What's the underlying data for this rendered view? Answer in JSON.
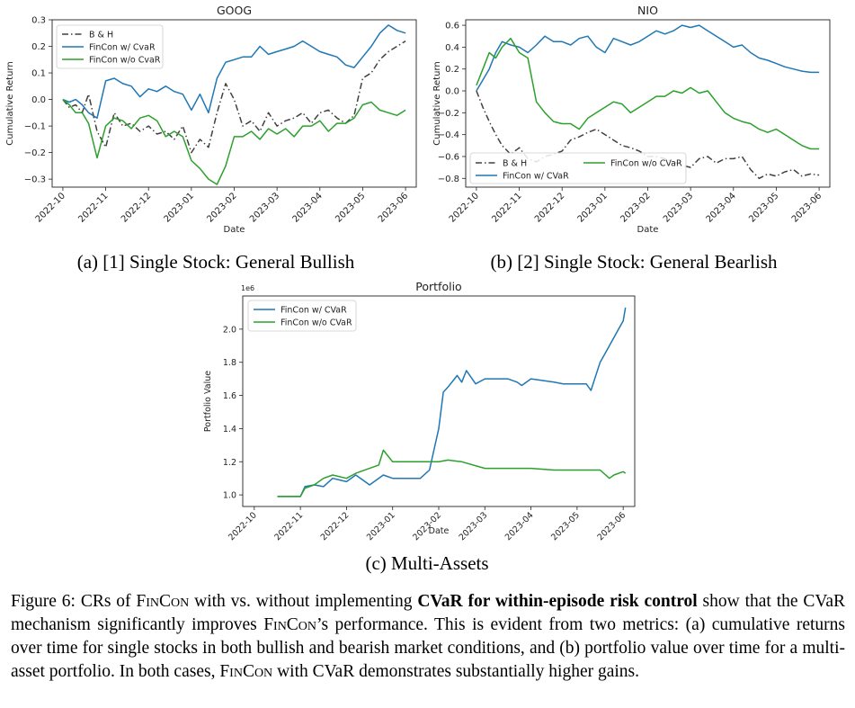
{
  "colors": {
    "bh": "#404040",
    "with_cvar": "#1f77b4",
    "without_cvar": "#2ca02c",
    "axis": "#222222"
  },
  "chart_data": [
    {
      "id": "goog",
      "type": "line",
      "title": "GOOG",
      "xlabel": "Date",
      "ylabel": "Cumulative Return",
      "x_ticks": [
        "2022-10",
        "2022-11",
        "2022-12",
        "2023-01",
        "2023-02",
        "2023-03",
        "2023-04",
        "2023-05",
        "2023-06"
      ],
      "ylim": [
        -0.33,
        0.3
      ],
      "y_ticks": [
        -0.3,
        -0.2,
        -0.1,
        0.0,
        0.1,
        0.2,
        0.3
      ],
      "y_tick_labels": [
        "−0.3",
        "−0.2",
        "−0.1",
        "0.0",
        "0.1",
        "0.2",
        "0.3"
      ],
      "legend_position": "top-left",
      "series": [
        {
          "name": "B & H",
          "style": "dashdot",
          "color_key": "bh",
          "x": [
            0,
            0.15,
            0.3,
            0.45,
            0.6,
            0.8,
            1,
            1.2,
            1.4,
            1.6,
            1.8,
            2,
            2.2,
            2.4,
            2.6,
            2.8,
            3,
            3.2,
            3.4,
            3.6,
            3.8,
            4,
            4.2,
            4.4,
            4.6,
            4.8,
            5,
            5.2,
            5.4,
            5.6,
            5.8,
            6,
            6.2,
            6.4,
            6.6,
            6.8,
            7,
            7.2,
            7.4,
            7.6,
            7.8,
            8
          ],
          "values": [
            0,
            -0.03,
            -0.02,
            -0.05,
            0.02,
            -0.12,
            -0.18,
            -0.05,
            -0.1,
            -0.09,
            -0.12,
            -0.1,
            -0.13,
            -0.12,
            -0.15,
            -0.1,
            -0.2,
            -0.15,
            -0.18,
            -0.05,
            0.06,
            0,
            -0.1,
            -0.08,
            -0.12,
            -0.05,
            -0.1,
            -0.08,
            -0.07,
            -0.05,
            -0.09,
            -0.05,
            -0.04,
            -0.07,
            -0.09,
            -0.06,
            0.08,
            0.1,
            0.15,
            0.18,
            0.2,
            0.22
          ]
        },
        {
          "name": "FinCon w/ CvaR",
          "style": "solid",
          "color_key": "with_cvar",
          "x": [
            0,
            0.15,
            0.3,
            0.45,
            0.6,
            0.8,
            1,
            1.2,
            1.4,
            1.6,
            1.8,
            2,
            2.2,
            2.4,
            2.6,
            2.8,
            3,
            3.2,
            3.4,
            3.6,
            3.8,
            4,
            4.2,
            4.4,
            4.6,
            4.8,
            5,
            5.2,
            5.4,
            5.6,
            5.8,
            6,
            6.2,
            6.4,
            6.6,
            6.8,
            7,
            7.2,
            7.4,
            7.6,
            7.8,
            8
          ],
          "values": [
            0,
            -0.01,
            0,
            -0.02,
            -0.05,
            -0.07,
            0.07,
            0.08,
            0.06,
            0.05,
            0.01,
            0.04,
            0.03,
            0.05,
            0.03,
            0.02,
            -0.04,
            0.02,
            -0.05,
            0.08,
            0.14,
            0.15,
            0.16,
            0.16,
            0.2,
            0.17,
            0.18,
            0.19,
            0.2,
            0.22,
            0.2,
            0.18,
            0.17,
            0.16,
            0.13,
            0.12,
            0.16,
            0.2,
            0.25,
            0.28,
            0.26,
            0.25
          ]
        },
        {
          "name": "FinCon w/o CvaR",
          "style": "solid",
          "color_key": "without_cvar",
          "x": [
            0,
            0.15,
            0.3,
            0.45,
            0.6,
            0.8,
            1,
            1.2,
            1.4,
            1.6,
            1.8,
            2,
            2.2,
            2.4,
            2.6,
            2.8,
            3,
            3.2,
            3.4,
            3.6,
            3.8,
            4,
            4.2,
            4.4,
            4.6,
            4.8,
            5,
            5.2,
            5.4,
            5.6,
            5.8,
            6,
            6.2,
            6.4,
            6.6,
            6.8,
            7,
            7.2,
            7.4,
            7.6,
            7.8,
            8
          ],
          "values": [
            0,
            -0.02,
            -0.05,
            -0.05,
            -0.09,
            -0.22,
            -0.1,
            -0.07,
            -0.08,
            -0.11,
            -0.07,
            -0.06,
            -0.08,
            -0.14,
            -0.12,
            -0.14,
            -0.23,
            -0.26,
            -0.3,
            -0.32,
            -0.25,
            -0.14,
            -0.14,
            -0.12,
            -0.15,
            -0.11,
            -0.13,
            -0.11,
            -0.14,
            -0.1,
            -0.1,
            -0.08,
            -0.12,
            -0.09,
            -0.09,
            -0.07,
            -0.02,
            -0.01,
            -0.04,
            -0.05,
            -0.06,
            -0.04
          ]
        }
      ]
    },
    {
      "id": "nio",
      "type": "line",
      "title": "NIO",
      "xlabel": "Date",
      "ylabel": "Cumulative Return",
      "x_ticks": [
        "2022-10",
        "2022-11",
        "2022-12",
        "2023-01",
        "2023-02",
        "2023-03",
        "2023-04",
        "2023-05",
        "2023-06"
      ],
      "ylim": [
        -0.88,
        0.65
      ],
      "y_ticks": [
        -0.8,
        -0.6,
        -0.4,
        -0.2,
        0.0,
        0.2,
        0.4,
        0.6
      ],
      "y_tick_labels": [
        "−0.8",
        "−0.6",
        "−0.4",
        "−0.2",
        "0.0",
        "0.2",
        "0.4",
        "0.6"
      ],
      "legend_position": "bottom-left",
      "series": [
        {
          "name": "B & H",
          "style": "dashdot",
          "color_key": "bh",
          "x": [
            0,
            0.15,
            0.3,
            0.45,
            0.6,
            0.8,
            1,
            1.2,
            1.4,
            1.6,
            1.8,
            2,
            2.2,
            2.4,
            2.6,
            2.8,
            3,
            3.2,
            3.4,
            3.6,
            3.8,
            4,
            4.2,
            4.4,
            4.6,
            4.8,
            5,
            5.2,
            5.4,
            5.6,
            5.8,
            6,
            6.2,
            6.4,
            6.6,
            6.8,
            7,
            7.2,
            7.4,
            7.6,
            7.8,
            8
          ],
          "values": [
            0,
            -0.15,
            -0.28,
            -0.4,
            -0.5,
            -0.58,
            -0.52,
            -0.62,
            -0.65,
            -0.6,
            -0.58,
            -0.55,
            -0.45,
            -0.42,
            -0.38,
            -0.35,
            -0.4,
            -0.45,
            -0.5,
            -0.52,
            -0.55,
            -0.6,
            -0.6,
            -0.62,
            -0.65,
            -0.68,
            -0.7,
            -0.62,
            -0.6,
            -0.66,
            -0.62,
            -0.62,
            -0.6,
            -0.72,
            -0.8,
            -0.76,
            -0.78,
            -0.74,
            -0.72,
            -0.78,
            -0.76,
            -0.77
          ]
        },
        {
          "name": "FinCon w/ CVaR",
          "style": "solid",
          "color_key": "with_cvar",
          "x": [
            0,
            0.15,
            0.3,
            0.45,
            0.6,
            0.8,
            1,
            1.2,
            1.4,
            1.6,
            1.8,
            2,
            2.2,
            2.4,
            2.6,
            2.8,
            3,
            3.2,
            3.4,
            3.6,
            3.8,
            4,
            4.2,
            4.4,
            4.6,
            4.8,
            5,
            5.2,
            5.4,
            5.6,
            5.8,
            6,
            6.2,
            6.4,
            6.6,
            6.8,
            7,
            7.2,
            7.4,
            7.6,
            7.8,
            8
          ],
          "values": [
            0,
            0.1,
            0.2,
            0.35,
            0.45,
            0.42,
            0.4,
            0.35,
            0.42,
            0.5,
            0.45,
            0.45,
            0.42,
            0.48,
            0.5,
            0.4,
            0.35,
            0.48,
            0.45,
            0.42,
            0.45,
            0.5,
            0.55,
            0.52,
            0.55,
            0.6,
            0.58,
            0.6,
            0.55,
            0.5,
            0.45,
            0.4,
            0.42,
            0.35,
            0.3,
            0.28,
            0.25,
            0.22,
            0.2,
            0.18,
            0.17,
            0.17
          ]
        },
        {
          "name": "FinCon w/o CVaR",
          "style": "solid",
          "color_key": "without_cvar",
          "x": [
            0,
            0.15,
            0.3,
            0.45,
            0.6,
            0.8,
            1,
            1.2,
            1.4,
            1.6,
            1.8,
            2,
            2.2,
            2.4,
            2.6,
            2.8,
            3,
            3.2,
            3.4,
            3.6,
            3.8,
            4,
            4.2,
            4.4,
            4.6,
            4.8,
            5,
            5.2,
            5.4,
            5.6,
            5.8,
            6,
            6.2,
            6.4,
            6.6,
            6.8,
            7,
            7.2,
            7.4,
            7.6,
            7.8,
            8
          ],
          "values": [
            0.05,
            0.2,
            0.35,
            0.3,
            0.4,
            0.48,
            0.35,
            0.3,
            -0.1,
            -0.2,
            -0.28,
            -0.3,
            -0.3,
            -0.35,
            -0.25,
            -0.2,
            -0.15,
            -0.1,
            -0.12,
            -0.2,
            -0.15,
            -0.1,
            -0.05,
            -0.05,
            0,
            -0.02,
            0.03,
            -0.02,
            0,
            -0.1,
            -0.2,
            -0.25,
            -0.28,
            -0.3,
            -0.35,
            -0.38,
            -0.35,
            -0.4,
            -0.45,
            -0.5,
            -0.53,
            -0.53
          ]
        }
      ]
    },
    {
      "id": "portfolio",
      "type": "line",
      "title": "Portfolio",
      "xlabel": "Date",
      "ylabel": "Portfolio Value",
      "y_scale_label": "1e6",
      "x_ticks": [
        "2022-10",
        "2022-11",
        "2022-12",
        "2023-01",
        "2023-02",
        "2023-03",
        "2023-04",
        "2023-05",
        "2023-06"
      ],
      "ylim": [
        0.93,
        2.2
      ],
      "y_ticks": [
        1.0,
        1.2,
        1.4,
        1.6,
        1.8,
        2.0
      ],
      "y_tick_labels": [
        "1.0",
        "1.2",
        "1.4",
        "1.6",
        "1.8",
        "2.0"
      ],
      "legend_position": "top-left",
      "series": [
        {
          "name": "FinCon w/ CVaR",
          "style": "solid",
          "color_key": "with_cvar",
          "x": [
            0.5,
            1.0,
            1.1,
            1.3,
            1.5,
            1.7,
            2.0,
            2.2,
            2.5,
            2.8,
            3.0,
            3.2,
            3.4,
            3.6,
            3.8,
            4.0,
            4.1,
            4.2,
            4.4,
            4.5,
            4.6,
            4.8,
            5.0,
            5.5,
            5.7,
            5.8,
            6.0,
            6.5,
            6.7,
            6.8,
            7.0,
            7.2,
            7.3,
            7.5,
            7.6,
            7.8,
            7.9,
            8.0,
            8.05
          ],
          "values": [
            0.99,
            0.99,
            1.05,
            1.06,
            1.05,
            1.1,
            1.08,
            1.12,
            1.06,
            1.12,
            1.1,
            1.1,
            1.1,
            1.1,
            1.15,
            1.4,
            1.62,
            1.65,
            1.72,
            1.68,
            1.75,
            1.67,
            1.7,
            1.7,
            1.68,
            1.66,
            1.7,
            1.68,
            1.67,
            1.67,
            1.67,
            1.67,
            1.63,
            1.8,
            1.85,
            1.95,
            2.0,
            2.05,
            2.13
          ]
        },
        {
          "name": "FinCon w/o CVaR",
          "style": "solid",
          "color_key": "without_cvar",
          "x": [
            0.5,
            1.0,
            1.1,
            1.3,
            1.5,
            1.7,
            2.0,
            2.2,
            2.5,
            2.7,
            2.8,
            3.0,
            3.2,
            3.4,
            3.6,
            3.8,
            4.0,
            4.2,
            4.5,
            5.0,
            5.5,
            6.0,
            6.5,
            7.0,
            7.2,
            7.5,
            7.7,
            7.8,
            8.0,
            8.05
          ],
          "values": [
            0.99,
            0.99,
            1.04,
            1.06,
            1.1,
            1.12,
            1.1,
            1.13,
            1.16,
            1.18,
            1.27,
            1.2,
            1.2,
            1.2,
            1.2,
            1.2,
            1.2,
            1.21,
            1.2,
            1.16,
            1.16,
            1.16,
            1.15,
            1.15,
            1.15,
            1.15,
            1.1,
            1.12,
            1.14,
            1.13
          ]
        }
      ]
    }
  ],
  "subcaptions": {
    "a": "(a) [1] Single Stock: General Bullish",
    "b": "(b) [2] Single Stock: General Bearlish",
    "c": "(c) Multi-Assets"
  },
  "figure_caption": {
    "label": "Figure 6:",
    "p1": " CRs of ",
    "fincon": "FinCon",
    "p2": " with vs. without implementing ",
    "bold": "CVaR for within-episode risk control",
    "p3": " show that the CVaR mechanism significantly improves ",
    "p4": "’s performance. This is evident from two metrics: (a) cumulative returns over time for single stocks in both bullish and bearish market conditions, and (b) portfolio value over time for a multi-asset portfolio. In both cases, ",
    "p5": " with CVaR demonstrates substantially higher gains."
  }
}
